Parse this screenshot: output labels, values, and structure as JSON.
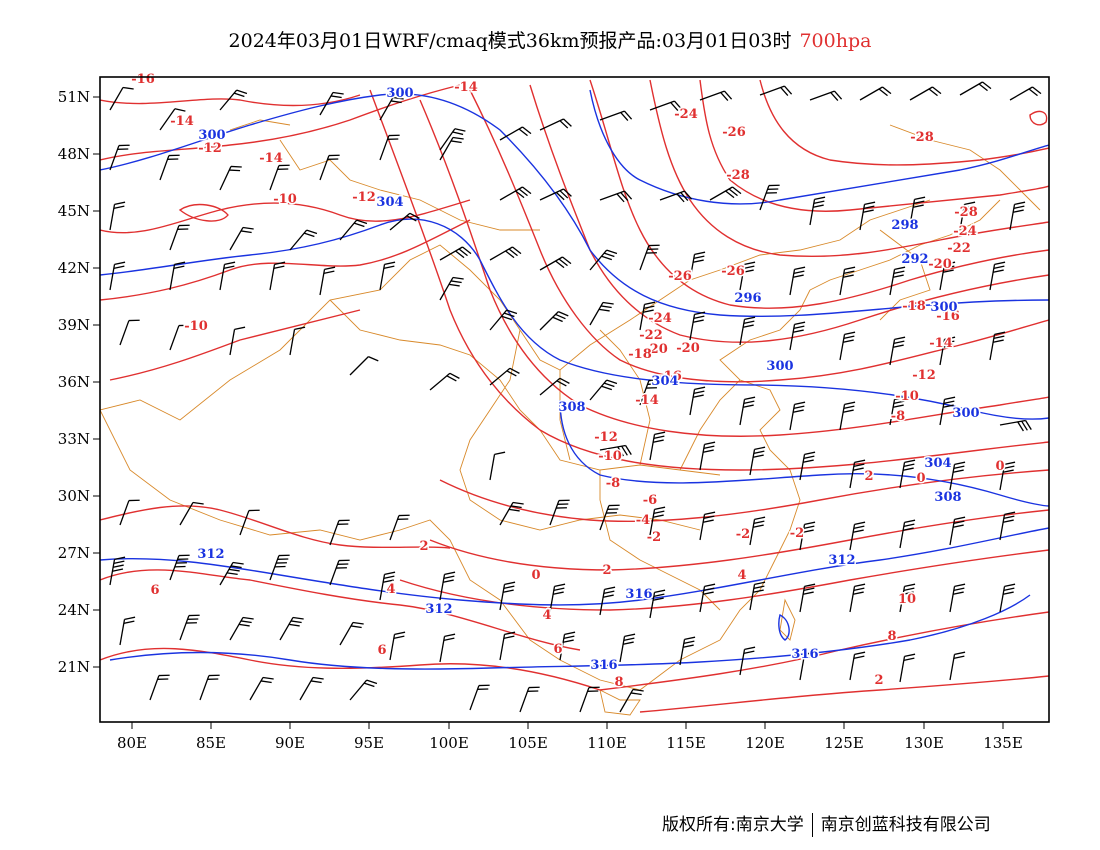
{
  "title": {
    "main": "2024年03月01日WRF/cmaq模式36km预报产品:03月01日03时",
    "level": "700hpa"
  },
  "axes": {
    "x_ticks": [
      "80E",
      "85E",
      "90E",
      "95E",
      "100E",
      "105E",
      "110E",
      "115E",
      "120E",
      "125E",
      "130E",
      "135E"
    ],
    "y_ticks": [
      "51N",
      "48N",
      "45N",
      "42N",
      "39N",
      "36N",
      "33N",
      "30N",
      "27N",
      "24N",
      "21N"
    ]
  },
  "colors": {
    "temperature": "#e03030",
    "geopotential": "#1a33e0",
    "border": "#d8892a",
    "wind": "#000000"
  },
  "temperature_labels": [
    "-16",
    "-14",
    "-14",
    "-12",
    "-14",
    "-10",
    "-12",
    "-24",
    "-26",
    "-28",
    "-28",
    "-28",
    "-26",
    "-24",
    "-22",
    "-20",
    "-18",
    "-16",
    "-14",
    "-12",
    "-10",
    "-8",
    "-10",
    "-26",
    "-20",
    "-24",
    "-22",
    "-20",
    "-18",
    "-16",
    "-14",
    "-12",
    "-10",
    "-8",
    "-6",
    "-4",
    "-2",
    "0",
    "2",
    "4",
    "-2",
    "0",
    "2",
    "0",
    "-2",
    "4",
    "2",
    "4",
    "6",
    "6",
    "6",
    "8",
    "8",
    "10",
    "2"
  ],
  "geopotential_labels": [
    "300",
    "300",
    "304",
    "298",
    "296",
    "292",
    "300",
    "300",
    "304",
    "308",
    "308",
    "300",
    "304",
    "312",
    "312",
    "312",
    "316",
    "316",
    "316"
  ],
  "copyright": {
    "left": "版权所有:南京大学",
    "right": "南京创蓝科技有限公司"
  }
}
